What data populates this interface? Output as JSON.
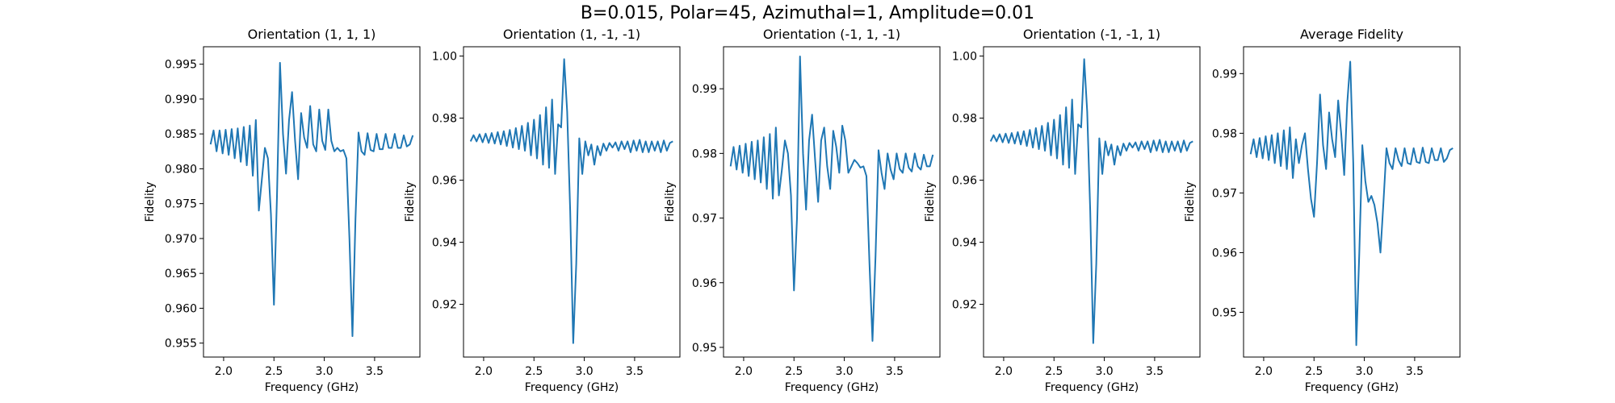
{
  "suptitle": "B=0.015, Polar=45, Azimuthal=1, Amplitude=0.01",
  "colors": {
    "line": "#1f77b4",
    "axes": "#000000"
  },
  "chart_data": [
    {
      "type": "line",
      "title": "Orientation (1, 1, 1)",
      "xlabel": "Frequency (GHz)",
      "ylabel": "Fidelity",
      "xlim": [
        1.8,
        3.95
      ],
      "ylim": [
        0.953,
        0.9975
      ],
      "xticks": [
        2.0,
        2.5,
        3.0,
        3.5
      ],
      "xtick_labels": [
        "2.0",
        "2.5",
        "3.0",
        "3.5"
      ],
      "yticks": [
        0.955,
        0.96,
        0.965,
        0.97,
        0.975,
        0.98,
        0.985,
        0.99,
        0.995
      ],
      "ytick_labels": [
        "0.955",
        "0.960",
        "0.965",
        "0.970",
        "0.975",
        "0.980",
        "0.985",
        "0.990",
        "0.995"
      ],
      "grid": false,
      "series": [
        {
          "x": [
            1.87,
            1.9,
            1.93,
            1.96,
            1.99,
            2.02,
            2.05,
            2.08,
            2.11,
            2.14,
            2.17,
            2.2,
            2.23,
            2.26,
            2.29,
            2.32,
            2.35,
            2.38,
            2.41,
            2.44,
            2.47,
            2.5,
            2.53,
            2.56,
            2.59,
            2.62,
            2.65,
            2.68,
            2.71,
            2.74,
            2.77,
            2.8,
            2.83,
            2.86,
            2.89,
            2.92,
            2.95,
            2.98,
            3.01,
            3.04,
            3.07,
            3.1,
            3.13,
            3.16,
            3.19,
            3.22,
            3.25,
            3.28,
            3.31,
            3.34,
            3.37,
            3.4,
            3.43,
            3.46,
            3.49,
            3.52,
            3.55,
            3.58,
            3.61,
            3.64,
            3.67,
            3.7,
            3.73,
            3.76,
            3.79,
            3.82,
            3.85,
            3.88
          ],
          "y": [
            0.9835,
            0.9855,
            0.9825,
            0.9855,
            0.9822,
            0.9856,
            0.982,
            0.9857,
            0.9815,
            0.9858,
            0.981,
            0.986,
            0.9805,
            0.9862,
            0.979,
            0.987,
            0.974,
            0.9785,
            0.983,
            0.9815,
            0.9735,
            0.9605,
            0.976,
            0.9952,
            0.985,
            0.9793,
            0.987,
            0.991,
            0.984,
            0.9785,
            0.988,
            0.9845,
            0.983,
            0.989,
            0.9835,
            0.9825,
            0.9885,
            0.984,
            0.9827,
            0.9885,
            0.984,
            0.9825,
            0.983,
            0.9825,
            0.9827,
            0.9815,
            0.97,
            0.956,
            0.9728,
            0.9852,
            0.9825,
            0.982,
            0.9851,
            0.9827,
            0.9825,
            0.985,
            0.9828,
            0.9828,
            0.985,
            0.983,
            0.983,
            0.985,
            0.983,
            0.983,
            0.9848,
            0.9832,
            0.9835,
            0.9848
          ]
        }
      ]
    },
    {
      "type": "line",
      "title": "Orientation (1, -1, -1)",
      "xlabel": "Frequency (GHz)",
      "ylabel": "Fidelity",
      "xlim": [
        1.8,
        3.95
      ],
      "ylim": [
        0.903,
        1.003
      ],
      "xticks": [
        2.0,
        2.5,
        3.0,
        3.5
      ],
      "xtick_labels": [
        "2.0",
        "2.5",
        "3.0",
        "3.5"
      ],
      "yticks": [
        0.92,
        0.94,
        0.96,
        0.98,
        1.0
      ],
      "ytick_labels": [
        "0.92",
        "0.94",
        "0.96",
        "0.98",
        "1.00"
      ],
      "grid": false,
      "series": [
        {
          "x": [
            1.87,
            1.9,
            1.93,
            1.96,
            1.99,
            2.02,
            2.05,
            2.08,
            2.11,
            2.14,
            2.17,
            2.2,
            2.23,
            2.26,
            2.29,
            2.32,
            2.35,
            2.38,
            2.41,
            2.44,
            2.47,
            2.5,
            2.53,
            2.56,
            2.59,
            2.62,
            2.65,
            2.68,
            2.71,
            2.74,
            2.77,
            2.8,
            2.83,
            2.86,
            2.89,
            2.92,
            2.95,
            2.98,
            3.01,
            3.04,
            3.07,
            3.1,
            3.13,
            3.16,
            3.19,
            3.22,
            3.25,
            3.28,
            3.31,
            3.34,
            3.37,
            3.4,
            3.43,
            3.46,
            3.49,
            3.52,
            3.55,
            3.58,
            3.61,
            3.64,
            3.67,
            3.7,
            3.73,
            3.76,
            3.79,
            3.82,
            3.85,
            3.88
          ],
          "y": [
            0.9725,
            0.9745,
            0.9725,
            0.9748,
            0.9722,
            0.975,
            0.972,
            0.9752,
            0.9718,
            0.9755,
            0.9715,
            0.9758,
            0.971,
            0.9762,
            0.9705,
            0.9768,
            0.97,
            0.9775,
            0.9695,
            0.9785,
            0.968,
            0.9795,
            0.967,
            0.981,
            0.965,
            0.9835,
            0.964,
            0.986,
            0.962,
            0.978,
            0.977,
            0.999,
            0.982,
            0.95,
            0.9075,
            0.933,
            0.9735,
            0.962,
            0.9725,
            0.968,
            0.9715,
            0.965,
            0.971,
            0.968,
            0.9718,
            0.9695,
            0.972,
            0.9705,
            0.9722,
            0.9695,
            0.9725,
            0.97,
            0.9725,
            0.969,
            0.9728,
            0.9695,
            0.973,
            0.969,
            0.9725,
            0.969,
            0.9725,
            0.9695,
            0.9725,
            0.969,
            0.9728,
            0.9695,
            0.972,
            0.9725
          ]
        }
      ]
    },
    {
      "type": "line",
      "title": "Orientation (-1, 1, -1)",
      "xlabel": "Frequency (GHz)",
      "ylabel": "Fidelity",
      "xlim": [
        1.8,
        3.95
      ],
      "ylim": [
        0.9485,
        0.9965
      ],
      "xticks": [
        2.0,
        2.5,
        3.0,
        3.5
      ],
      "xtick_labels": [
        "2.0",
        "2.5",
        "3.0",
        "3.5"
      ],
      "yticks": [
        0.95,
        0.96,
        0.97,
        0.98,
        0.99
      ],
      "ytick_labels": [
        "0.95",
        "0.96",
        "0.97",
        "0.98",
        "0.99"
      ],
      "grid": false,
      "series": [
        {
          "x": [
            1.87,
            1.9,
            1.93,
            1.96,
            1.99,
            2.02,
            2.05,
            2.08,
            2.11,
            2.14,
            2.17,
            2.2,
            2.23,
            2.26,
            2.29,
            2.32,
            2.35,
            2.38,
            2.41,
            2.44,
            2.47,
            2.5,
            2.53,
            2.56,
            2.59,
            2.62,
            2.65,
            2.68,
            2.71,
            2.74,
            2.77,
            2.8,
            2.83,
            2.86,
            2.89,
            2.92,
            2.95,
            2.98,
            3.01,
            3.04,
            3.07,
            3.1,
            3.13,
            3.16,
            3.19,
            3.22,
            3.25,
            3.28,
            3.31,
            3.34,
            3.37,
            3.4,
            3.43,
            3.46,
            3.49,
            3.52,
            3.55,
            3.58,
            3.61,
            3.64,
            3.67,
            3.7,
            3.73,
            3.76,
            3.79,
            3.82,
            3.85,
            3.88
          ],
          "y": [
            0.978,
            0.981,
            0.9775,
            0.9812,
            0.977,
            0.9815,
            0.9765,
            0.9818,
            0.976,
            0.982,
            0.9755,
            0.9825,
            0.9745,
            0.983,
            0.973,
            0.984,
            0.9735,
            0.9775,
            0.982,
            0.98,
            0.9735,
            0.9588,
            0.97,
            0.995,
            0.98,
            0.9713,
            0.982,
            0.986,
            0.979,
            0.9725,
            0.982,
            0.984,
            0.978,
            0.9745,
            0.9835,
            0.981,
            0.977,
            0.9843,
            0.982,
            0.977,
            0.978,
            0.979,
            0.9785,
            0.9778,
            0.978,
            0.9765,
            0.963,
            0.951,
            0.964,
            0.9805,
            0.977,
            0.9745,
            0.98,
            0.9775,
            0.976,
            0.98,
            0.9776,
            0.977,
            0.98,
            0.9778,
            0.9772,
            0.98,
            0.978,
            0.9775,
            0.9798,
            0.978,
            0.978,
            0.9798
          ]
        }
      ]
    },
    {
      "type": "line",
      "title": "Orientation (-1, -1, 1)",
      "xlabel": "Frequency (GHz)",
      "ylabel": "Fidelity",
      "xlim": [
        1.8,
        3.95
      ],
      "ylim": [
        0.903,
        1.003
      ],
      "xticks": [
        2.0,
        2.5,
        3.0,
        3.5
      ],
      "xtick_labels": [
        "2.0",
        "2.5",
        "3.0",
        "3.5"
      ],
      "yticks": [
        0.92,
        0.94,
        0.96,
        0.98,
        1.0
      ],
      "ytick_labels": [
        "0.92",
        "0.94",
        "0.96",
        "0.98",
        "1.00"
      ],
      "grid": false,
      "series": [
        {
          "x": [
            1.87,
            1.9,
            1.93,
            1.96,
            1.99,
            2.02,
            2.05,
            2.08,
            2.11,
            2.14,
            2.17,
            2.2,
            2.23,
            2.26,
            2.29,
            2.32,
            2.35,
            2.38,
            2.41,
            2.44,
            2.47,
            2.5,
            2.53,
            2.56,
            2.59,
            2.62,
            2.65,
            2.68,
            2.71,
            2.74,
            2.77,
            2.8,
            2.83,
            2.86,
            2.89,
            2.92,
            2.95,
            2.98,
            3.01,
            3.04,
            3.07,
            3.1,
            3.13,
            3.16,
            3.19,
            3.22,
            3.25,
            3.28,
            3.31,
            3.34,
            3.37,
            3.4,
            3.43,
            3.46,
            3.49,
            3.52,
            3.55,
            3.58,
            3.61,
            3.64,
            3.67,
            3.7,
            3.73,
            3.76,
            3.79,
            3.82,
            3.85,
            3.88
          ],
          "y": [
            0.9725,
            0.9745,
            0.9725,
            0.9748,
            0.9722,
            0.975,
            0.972,
            0.9752,
            0.9718,
            0.9755,
            0.9715,
            0.9758,
            0.971,
            0.9762,
            0.9705,
            0.9768,
            0.97,
            0.9775,
            0.9695,
            0.9785,
            0.968,
            0.9795,
            0.967,
            0.981,
            0.965,
            0.9835,
            0.964,
            0.986,
            0.962,
            0.978,
            0.977,
            0.999,
            0.982,
            0.95,
            0.9075,
            0.933,
            0.9735,
            0.962,
            0.9725,
            0.968,
            0.9715,
            0.965,
            0.971,
            0.968,
            0.9718,
            0.9695,
            0.972,
            0.9705,
            0.9722,
            0.9695,
            0.9725,
            0.97,
            0.9725,
            0.969,
            0.9728,
            0.9695,
            0.973,
            0.969,
            0.9725,
            0.969,
            0.9725,
            0.9695,
            0.9725,
            0.969,
            0.9728,
            0.9695,
            0.972,
            0.9725
          ]
        }
      ]
    },
    {
      "type": "line",
      "title": "Average Fidelity",
      "xlabel": "Frequency (GHz)",
      "ylabel": "Fidelity",
      "xlim": [
        1.8,
        3.95
      ],
      "ylim": [
        0.9425,
        0.9945
      ],
      "xticks": [
        2.0,
        2.5,
        3.0,
        3.5
      ],
      "xtick_labels": [
        "2.0",
        "2.5",
        "3.0",
        "3.5"
      ],
      "yticks": [
        0.95,
        0.96,
        0.97,
        0.98,
        0.99
      ],
      "ytick_labels": [
        "0.95",
        "0.96",
        "0.97",
        "0.98",
        "0.99"
      ],
      "grid": false,
      "series": [
        {
          "x": [
            1.87,
            1.9,
            1.93,
            1.96,
            1.99,
            2.02,
            2.05,
            2.08,
            2.11,
            2.14,
            2.17,
            2.2,
            2.23,
            2.26,
            2.29,
            2.32,
            2.35,
            2.38,
            2.41,
            2.44,
            2.47,
            2.5,
            2.53,
            2.56,
            2.59,
            2.62,
            2.65,
            2.68,
            2.71,
            2.74,
            2.77,
            2.8,
            2.83,
            2.86,
            2.89,
            2.92,
            2.95,
            2.98,
            3.01,
            3.04,
            3.07,
            3.1,
            3.13,
            3.16,
            3.19,
            3.22,
            3.25,
            3.28,
            3.31,
            3.34,
            3.37,
            3.4,
            3.43,
            3.46,
            3.49,
            3.52,
            3.55,
            3.58,
            3.61,
            3.64,
            3.67,
            3.7,
            3.73,
            3.76,
            3.79,
            3.82,
            3.85,
            3.88
          ],
          "y": [
            0.9765,
            0.979,
            0.976,
            0.9792,
            0.9758,
            0.9795,
            0.9755,
            0.9797,
            0.975,
            0.98,
            0.9745,
            0.9805,
            0.974,
            0.981,
            0.9725,
            0.979,
            0.975,
            0.978,
            0.98,
            0.974,
            0.969,
            0.966,
            0.975,
            0.9865,
            0.978,
            0.974,
            0.9835,
            0.979,
            0.976,
            0.9855,
            0.98,
            0.973,
            0.985,
            0.992,
            0.975,
            0.9445,
            0.96,
            0.978,
            0.972,
            0.9685,
            0.9695,
            0.968,
            0.965,
            0.96,
            0.9685,
            0.9775,
            0.975,
            0.974,
            0.9775,
            0.9755,
            0.9745,
            0.9775,
            0.975,
            0.9748,
            0.9775,
            0.9752,
            0.975,
            0.9776,
            0.9752,
            0.975,
            0.9775,
            0.9755,
            0.9755,
            0.9775,
            0.9752,
            0.9758,
            0.9772,
            0.9775
          ]
        }
      ]
    }
  ]
}
